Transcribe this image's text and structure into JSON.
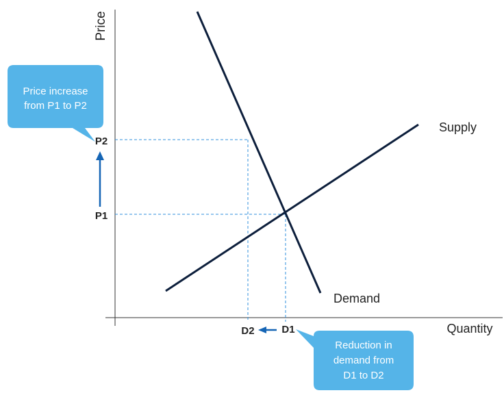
{
  "axes": {
    "y_label": "Price",
    "x_label": "Quantity"
  },
  "curves": {
    "supply_label": "Supply",
    "demand_label": "Demand"
  },
  "markers": {
    "p1": "P1",
    "p2": "P2",
    "d1": "D1",
    "d2": "D2"
  },
  "callouts": {
    "price": [
      "Price increase",
      "from P1 to P2"
    ],
    "demand": [
      "Reduction in",
      "demand from",
      "D1 to D2"
    ]
  },
  "colors": {
    "line": "#0d1f3c",
    "guide": "#2f8fde",
    "arrow": "#1565b5",
    "callout_fill": "#55b4e8",
    "axis": "#333333"
  }
}
